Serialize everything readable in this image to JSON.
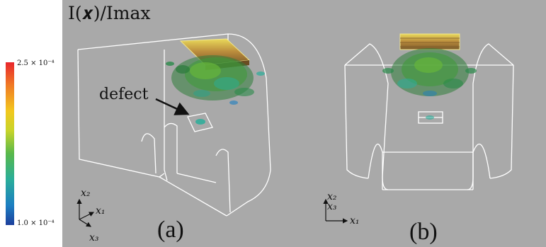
{
  "title": "I(𝒙)/Imax",
  "colorbar": {
    "max_label": "2.5 × 10⁻⁴",
    "min_label": "1.0 × 10⁻⁴",
    "colors": [
      "#e8262c",
      "#f2c81e",
      "#59b84a",
      "#2aae9a",
      "#1d3f9c"
    ]
  },
  "panel_a": {
    "label": "(a)",
    "annotation": "defect",
    "axes": {
      "x1": "x₁",
      "x2": "x₂",
      "x3": "x₃"
    }
  },
  "panel_b": {
    "label": "(b)",
    "axes": {
      "x1": "x₁",
      "x2": "x₂",
      "x3": "x₃"
    }
  }
}
